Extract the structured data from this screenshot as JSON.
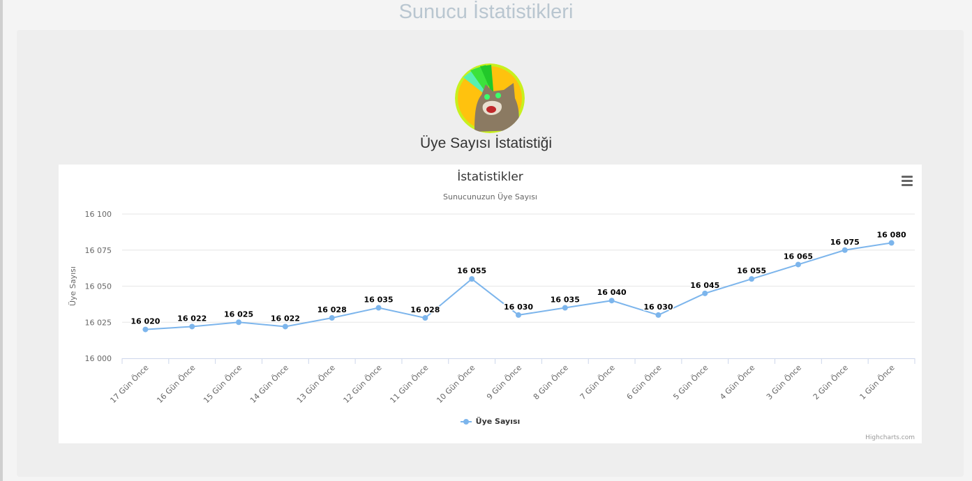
{
  "page": {
    "title": "Sunucu İstatistikleri",
    "section_title": "Üye Sayısı İstatistiği"
  },
  "avatar": {
    "icon": "cat-laser-eyes-avatar-icon"
  },
  "chart_menu": {
    "icon": "hamburger-menu-icon"
  },
  "credits": "Highcharts.com",
  "colors": {
    "series": "#7cb5ec",
    "grid": "#e6e6e6",
    "axis": "#ccd6eb"
  },
  "chart_data": {
    "type": "line",
    "title": "İstatistikler",
    "subtitle": "Sunucunuzun Üye Sayısı",
    "ylabel": "Üye Sayısı",
    "xlabel": "",
    "ylim": [
      16000,
      16100
    ],
    "yticks": [
      "16 000",
      "16 025",
      "16 050",
      "16 075",
      "16 100"
    ],
    "grid": true,
    "legend_position": "bottom-center",
    "categories": [
      "17 Gün Önce",
      "16 Gün Önce",
      "15 Gün Önce",
      "14 Gün Önce",
      "13 Gün Önce",
      "12 Gün Önce",
      "11 Gün Önce",
      "10 Gün Önce",
      "9 Gün Önce",
      "8 Gün Önce",
      "7 Gün Önce",
      "6 Gün Önce",
      "5 Gün Önce",
      "4 Gün Önce",
      "3 Gün Önce",
      "2 Gün Önce",
      "1 Gün Önce"
    ],
    "series": [
      {
        "name": "Üye Sayısı",
        "values": [
          16020,
          16022,
          16025,
          16022,
          16028,
          16035,
          16028,
          16055,
          16030,
          16035,
          16040,
          16030,
          16045,
          16055,
          16065,
          16075,
          16080
        ],
        "labels": [
          "16 020",
          "16 022",
          "16 025",
          "16 022",
          "16 028",
          "16 035",
          "16 028",
          "16 055",
          "16 030",
          "16 035",
          "16 040",
          "16 030",
          "16 045",
          "16 055",
          "16 065",
          "16 075",
          "16 080"
        ]
      }
    ]
  }
}
